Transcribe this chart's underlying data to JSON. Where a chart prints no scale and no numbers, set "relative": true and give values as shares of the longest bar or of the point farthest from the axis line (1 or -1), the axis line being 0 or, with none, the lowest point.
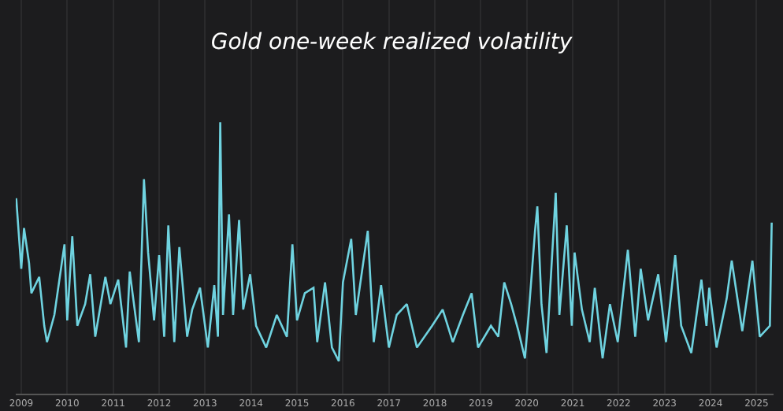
{
  "chart_data": {
    "type": "line",
    "title": "Gold one-week realized volatility",
    "relative": true,
    "x": [
      2008.89,
      2009.0,
      2009.06,
      2009.17,
      2009.22,
      2009.39,
      2009.5,
      2009.56,
      2009.72,
      2009.94,
      2010.0,
      2010.11,
      2010.22,
      2010.39,
      2010.5,
      2010.61,
      2010.83,
      2010.94,
      2011.11,
      2011.28,
      2011.36,
      2011.56,
      2011.67,
      2011.76,
      2011.89,
      2012.0,
      2012.11,
      2012.2,
      2012.33,
      2012.44,
      2012.61,
      2012.72,
      2012.89,
      2013.06,
      2013.2,
      2013.28,
      2013.33,
      2013.39,
      2013.52,
      2013.61,
      2013.74,
      2013.83,
      2013.98,
      2014.11,
      2014.33,
      2014.56,
      2014.78,
      2014.9,
      2015.0,
      2015.17,
      2015.36,
      2015.44,
      2015.61,
      2015.76,
      2015.91,
      2016.0,
      2016.18,
      2016.28,
      2016.54,
      2016.67,
      2016.83,
      2017.0,
      2017.17,
      2017.39,
      2017.61,
      2017.94,
      2018.17,
      2018.39,
      2018.61,
      2018.8,
      2018.94,
      2019.22,
      2019.38,
      2019.51,
      2019.66,
      2019.82,
      2019.96,
      2020.04,
      2020.18,
      2020.23,
      2020.32,
      2020.43,
      2020.63,
      2020.71,
      2020.87,
      2020.98,
      2021.04,
      2021.2,
      2021.37,
      2021.48,
      2021.65,
      2021.81,
      2021.98,
      2022.2,
      2022.36,
      2022.48,
      2022.64,
      2022.86,
      2023.03,
      2023.23,
      2023.36,
      2023.58,
      2023.8,
      2023.91,
      2023.97,
      2024.13,
      2024.35,
      2024.46,
      2024.69,
      2024.91,
      2025.07,
      2025.29,
      2025.33
    ],
    "series": [
      {
        "color": "#6fd3e0",
        "values": [
          0.72,
          0.46,
          0.61,
          0.48,
          0.37,
          0.43,
          0.25,
          0.19,
          0.29,
          0.55,
          0.27,
          0.58,
          0.25,
          0.33,
          0.44,
          0.21,
          0.43,
          0.33,
          0.42,
          0.17,
          0.45,
          0.19,
          0.79,
          0.52,
          0.27,
          0.51,
          0.21,
          0.62,
          0.19,
          0.54,
          0.21,
          0.31,
          0.39,
          0.17,
          0.4,
          0.21,
          1.0,
          0.29,
          0.66,
          0.29,
          0.64,
          0.31,
          0.44,
          0.25,
          0.17,
          0.29,
          0.21,
          0.55,
          0.27,
          0.37,
          0.39,
          0.19,
          0.41,
          0.17,
          0.12,
          0.41,
          0.57,
          0.29,
          0.6,
          0.19,
          0.4,
          0.17,
          0.29,
          0.33,
          0.17,
          0.25,
          0.31,
          0.19,
          0.29,
          0.37,
          0.17,
          0.25,
          0.21,
          0.41,
          0.33,
          0.23,
          0.13,
          0.29,
          0.6,
          0.69,
          0.33,
          0.15,
          0.74,
          0.29,
          0.62,
          0.25,
          0.52,
          0.31,
          0.19,
          0.39,
          0.13,
          0.33,
          0.19,
          0.53,
          0.21,
          0.46,
          0.27,
          0.44,
          0.19,
          0.51,
          0.25,
          0.15,
          0.42,
          0.25,
          0.39,
          0.17,
          0.35,
          0.49,
          0.23,
          0.49,
          0.21,
          0.25,
          0.63
        ]
      }
    ],
    "xlim": [
      2008.88,
      2025.37
    ],
    "xticks": [
      2009,
      2010,
      2011,
      2012,
      2013,
      2014,
      2015,
      2016,
      2017,
      2018,
      2019,
      2020,
      2021,
      2022,
      2023,
      2024,
      2025
    ],
    "grid": "x",
    "marker": "none",
    "line_style": "solid"
  }
}
